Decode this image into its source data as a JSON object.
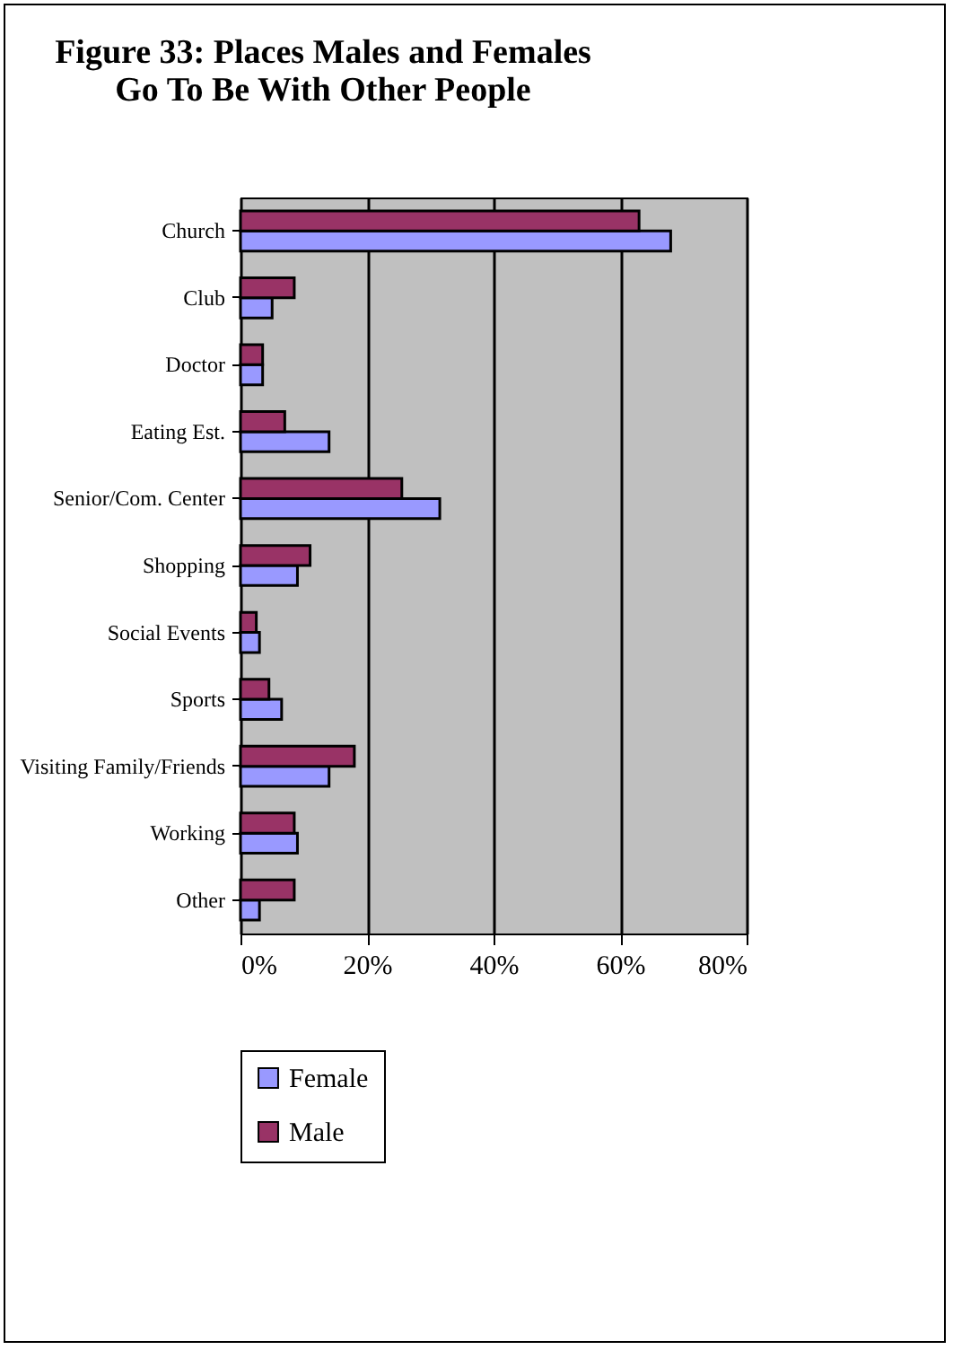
{
  "chart_data": {
    "type": "bar",
    "orientation": "horizontal",
    "title": "Figure 33: Places Males and Females\nGo To Be With Other People",
    "categories": [
      "Church",
      "Club",
      "Doctor",
      "Eating Est.",
      "Senior/Com. Center",
      "Shopping",
      "Social Events",
      "Sports",
      "Visiting Family/Friends",
      "Working",
      "Other"
    ],
    "series": [
      {
        "name": "Female",
        "color": "#9999ff",
        "values": [
          68,
          5,
          3.5,
          14,
          31.5,
          9,
          3,
          6.5,
          14,
          9,
          3
        ]
      },
      {
        "name": "Male",
        "color": "#993366",
        "values": [
          63,
          8.5,
          3.5,
          7,
          25.5,
          11,
          2.5,
          4.5,
          18,
          8.5,
          8.5
        ]
      }
    ],
    "xlim": [
      0,
      80
    ],
    "xticks": [
      {
        "value": 0,
        "label": "0%"
      },
      {
        "value": 20,
        "label": "20%"
      },
      {
        "value": 40,
        "label": "40%"
      },
      {
        "value": 60,
        "label": "60%"
      },
      {
        "value": 80,
        "label": "80%"
      }
    ],
    "grid": "x",
    "legend": "bottom"
  }
}
